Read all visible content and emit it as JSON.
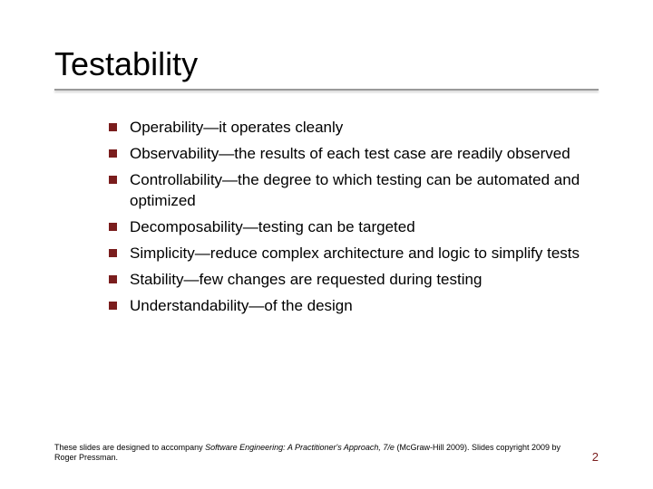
{
  "slide": {
    "title": "Testability",
    "title_fontsize": 36,
    "title_color": "#000000",
    "underline_color": "#999999",
    "background_color": "#ffffff",
    "accent_color": "#7a1d1d",
    "body_fontsize": 17,
    "body_color": "#000000",
    "bullets": [
      {
        "term": "Operability",
        "desc": "—it operates cleanly"
      },
      {
        "term": "Observability",
        "desc": "—the results of each test case are readily observed"
      },
      {
        "term": "Controllability",
        "desc": "—the degree to which testing can be automated and optimized"
      },
      {
        "term": "Decomposability",
        "desc": "—testing can be targeted"
      },
      {
        "term": "Simplicity",
        "desc": "—reduce complex architecture and logic to simplify tests"
      },
      {
        "term": "Stability",
        "desc": "—few changes are requested during testing"
      },
      {
        "term": "Understandability",
        "desc": "—of the design"
      }
    ],
    "footer": {
      "prefix": "These slides are designed to accompany ",
      "book": "Software Engineering: A Practitioner's Approach, 7/e",
      "suffix": " (McGraw-Hill 2009). Slides copyright 2009 by Roger Pressman.",
      "fontsize": 9
    },
    "page_number": "2",
    "page_number_color": "#7a1d1d"
  }
}
